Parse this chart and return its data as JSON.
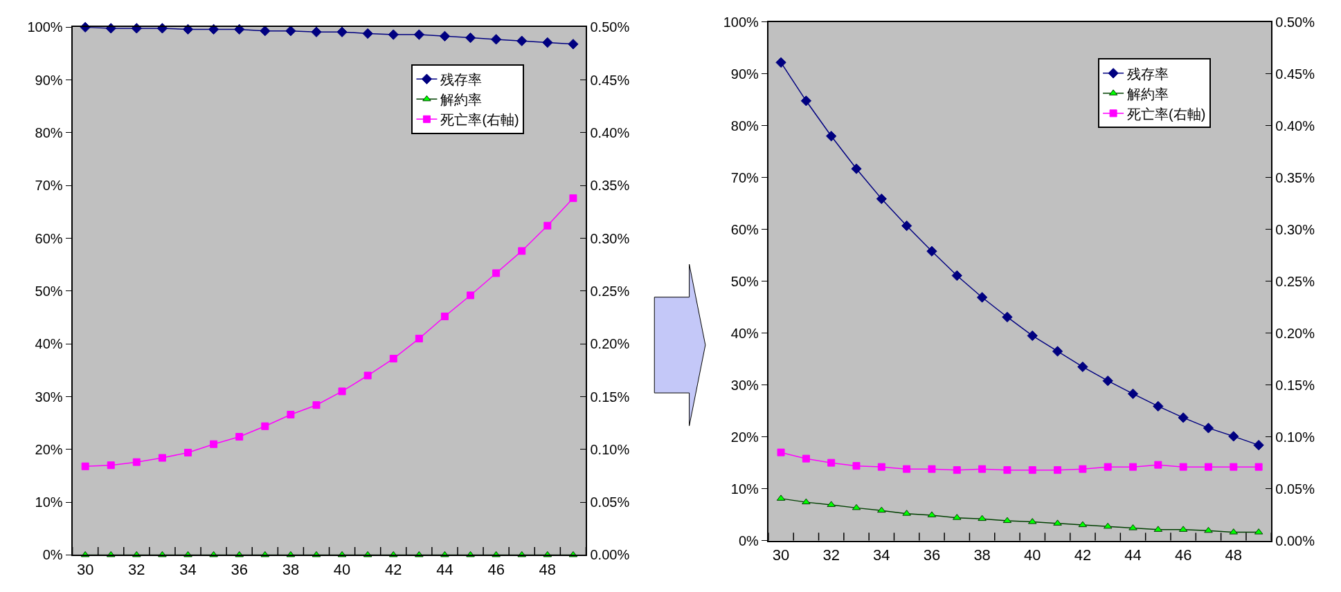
{
  "chart_data": [
    {
      "type": "line",
      "x": [
        30,
        31,
        32,
        33,
        34,
        35,
        36,
        37,
        38,
        39,
        40,
        41,
        42,
        43,
        44,
        45,
        46,
        47,
        48,
        49
      ],
      "xlim": [
        29.5,
        49.5
      ],
      "xticks": [
        30,
        32,
        34,
        36,
        38,
        40,
        42,
        44,
        46,
        48
      ],
      "ylim": [
        0,
        100
      ],
      "yticks": [
        {
          "value": 0,
          "label": "0%"
        },
        {
          "value": 10,
          "label": "10%"
        },
        {
          "value": 20,
          "label": "20%"
        },
        {
          "value": 30,
          "label": "30%"
        },
        {
          "value": 40,
          "label": "40%"
        },
        {
          "value": 50,
          "label": "50%"
        },
        {
          "value": 60,
          "label": "60%"
        },
        {
          "value": 70,
          "label": "70%"
        },
        {
          "value": 80,
          "label": "80%"
        },
        {
          "value": 90,
          "label": "90%"
        },
        {
          "value": 100,
          "label": "100%"
        }
      ],
      "y2lim": [
        0,
        0.5
      ],
      "y2ticks": [
        {
          "value": 0,
          "label": "0.00%"
        },
        {
          "value": 0.05,
          "label": "0.05%"
        },
        {
          "value": 0.1,
          "label": "0.10%"
        },
        {
          "value": 0.15,
          "label": "0.15%"
        },
        {
          "value": 0.2,
          "label": "0.20%"
        },
        {
          "value": 0.25,
          "label": "0.25%"
        },
        {
          "value": 0.3,
          "label": "0.30%"
        },
        {
          "value": 0.35,
          "label": "0.35%"
        },
        {
          "value": 0.4,
          "label": "0.40%"
        },
        {
          "value": 0.45,
          "label": "0.45%"
        },
        {
          "value": 0.5,
          "label": "0.50%"
        }
      ],
      "grid": false,
      "legend": "top right",
      "line_style": "solid",
      "series": [
        {
          "name": "残存率",
          "color": "#000080",
          "marker": "diamond",
          "values": [
            100,
            99.8,
            99.8,
            99.8,
            99.6,
            99.6,
            99.6,
            99.3,
            99.3,
            99.1,
            99.1,
            98.8,
            98.6,
            98.6,
            98.3,
            98.0,
            97.7,
            97.4,
            97.1,
            96.8
          ]
        },
        {
          "name": "解約率",
          "color": "#00ff00",
          "marker": "triangle",
          "values": [
            0,
            0,
            0,
            0,
            0,
            0,
            0,
            0,
            0,
            0,
            0,
            0,
            0,
            0,
            0,
            0,
            0,
            0,
            0,
            0
          ]
        },
        {
          "name": "死亡率(右軸)",
          "color": "#ff00ff",
          "marker": "square",
          "axis": "y2",
          "values": [
            0.084,
            0.085,
            0.088,
            0.092,
            0.097,
            0.105,
            0.112,
            0.122,
            0.133,
            0.142,
            0.155,
            0.17,
            0.186,
            0.205,
            0.226,
            0.246,
            0.267,
            0.288,
            0.312,
            0.338
          ]
        }
      ]
    },
    {
      "type": "line",
      "x": [
        30,
        31,
        32,
        33,
        34,
        35,
        36,
        37,
        38,
        39,
        40,
        41,
        42,
        43,
        44,
        45,
        46,
        47,
        48,
        49
      ],
      "xlim": [
        29.5,
        49.5
      ],
      "xticks": [
        30,
        32,
        34,
        36,
        38,
        40,
        42,
        44,
        46,
        48
      ],
      "ylim": [
        0,
        100
      ],
      "yticks": [
        {
          "value": 0,
          "label": "0%"
        },
        {
          "value": 10,
          "label": "10%"
        },
        {
          "value": 20,
          "label": "20%"
        },
        {
          "value": 30,
          "label": "30%"
        },
        {
          "value": 40,
          "label": "40%"
        },
        {
          "value": 50,
          "label": "50%"
        },
        {
          "value": 60,
          "label": "60%"
        },
        {
          "value": 70,
          "label": "70%"
        },
        {
          "value": 80,
          "label": "80%"
        },
        {
          "value": 90,
          "label": "90%"
        },
        {
          "value": 100,
          "label": "100%"
        }
      ],
      "y2lim": [
        0,
        0.5
      ],
      "y2ticks": [
        {
          "value": 0,
          "label": "0.00%"
        },
        {
          "value": 0.05,
          "label": "0.05%"
        },
        {
          "value": 0.1,
          "label": "0.10%"
        },
        {
          "value": 0.15,
          "label": "0.15%"
        },
        {
          "value": 0.2,
          "label": "0.20%"
        },
        {
          "value": 0.25,
          "label": "0.25%"
        },
        {
          "value": 0.3,
          "label": "0.30%"
        },
        {
          "value": 0.35,
          "label": "0.35%"
        },
        {
          "value": 0.4,
          "label": "0.40%"
        },
        {
          "value": 0.45,
          "label": "0.45%"
        },
        {
          "value": 0.5,
          "label": "0.50%"
        }
      ],
      "grid": false,
      "legend": "top right",
      "line_style": "solid",
      "series": [
        {
          "name": "残存率",
          "color": "#000080",
          "marker": "diamond",
          "values": [
            92.2,
            84.8,
            78.0,
            71.7,
            65.9,
            60.7,
            55.8,
            51.1,
            46.9,
            43.1,
            39.5,
            36.5,
            33.5,
            30.8,
            28.3,
            25.9,
            23.7,
            21.7,
            20.1,
            18.4
          ]
        },
        {
          "name": "解約率",
          "color": "#00ff00",
          "marker": "triangle",
          "values": [
            8.1,
            7.4,
            6.9,
            6.3,
            5.8,
            5.2,
            4.9,
            4.4,
            4.2,
            3.8,
            3.6,
            3.3,
            3.0,
            2.7,
            2.4,
            2.1,
            2.1,
            1.9,
            1.6,
            1.6
          ]
        },
        {
          "name": "死亡率(右軸)",
          "color": "#ff00ff",
          "marker": "square",
          "axis": "y2",
          "values": [
            0.085,
            0.079,
            0.075,
            0.072,
            0.071,
            0.069,
            0.069,
            0.068,
            0.069,
            0.068,
            0.068,
            0.068,
            0.069,
            0.071,
            0.071,
            0.073,
            0.071,
            0.071,
            0.071,
            0.071
          ]
        }
      ]
    }
  ]
}
